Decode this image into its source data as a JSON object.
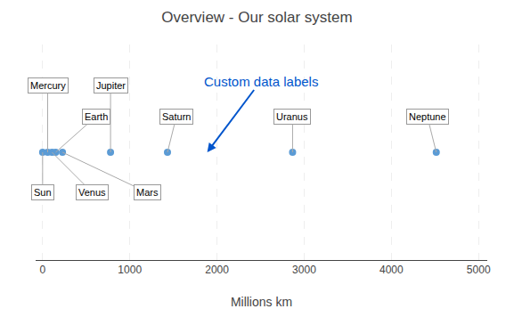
{
  "chart_data": {
    "type": "scatter",
    "title": "Overview - Our solar system",
    "xlabel": "Millions km",
    "x": [
      0,
      58,
      150,
      108,
      228,
      779,
      1432,
      2867,
      4515
    ],
    "labels": [
      "Sun",
      "Mercury",
      "Earth",
      "Venus",
      "Mars",
      "Jupiter",
      "Saturn",
      "Uranus",
      "Neptune"
    ],
    "color": "#5B9BD5",
    "xlim": [
      -80,
      5100
    ],
    "xticks": [
      0,
      1000,
      2000,
      3000,
      4000,
      5000
    ],
    "grid": true,
    "tick_labels": "x",
    "annotations": [
      {
        "text": "Custom data labels",
        "color": "#0055CC"
      }
    ]
  }
}
